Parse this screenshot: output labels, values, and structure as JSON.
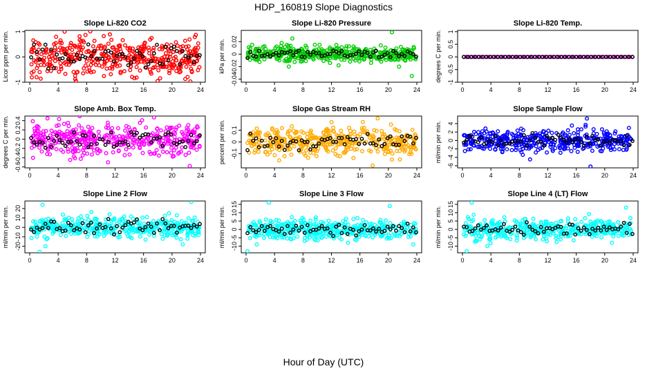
{
  "title": "HDP_160819  Slope Diagnostics",
  "xlabel": "Hour of Day (UTC)",
  "chart_data": [
    {
      "type": "scatter",
      "title": "Slope Li-820 CO2",
      "ylabel": "Licor ppm per min.",
      "color": "#ff0000",
      "xlim": [
        0,
        24
      ],
      "xticks": [
        0,
        4,
        8,
        12,
        16,
        20,
        24
      ],
      "ylim": [
        -1,
        1.05
      ],
      "yticks": [
        -1,
        0,
        1
      ],
      "spread": 0.38,
      "outliers": [
        [
          4.9,
          1.0
        ],
        [
          5.8,
          0.55
        ],
        [
          1.4,
          -0.6
        ],
        [
          6.5,
          -0.95
        ],
        [
          17,
          -0.6
        ],
        [
          22,
          0.4
        ]
      ]
    },
    {
      "type": "scatter",
      "title": "Slope Li-820 Pressure",
      "ylabel": "kPa per min.",
      "color": "#00cc00",
      "xlim": [
        0,
        24
      ],
      "xticks": [
        0,
        4,
        8,
        12,
        16,
        20,
        24
      ],
      "ylim": [
        -0.045,
        0.038
      ],
      "yticks": [
        -0.04,
        -0.02,
        0.0,
        0.02
      ],
      "spread": 0.006,
      "outliers": [
        [
          5,
          0.018
        ],
        [
          6,
          -0.02
        ],
        [
          6.5,
          0.025
        ],
        [
          20.5,
          0.035
        ],
        [
          21.5,
          -0.02
        ],
        [
          23.3,
          -0.035
        ],
        [
          13,
          -0.018
        ]
      ]
    },
    {
      "type": "scatter",
      "title": "Slope Li-820 Temp.",
      "ylabel": "degrees C per min.",
      "color": "#cc00cc",
      "xlim": [
        0,
        24
      ],
      "xticks": [
        0,
        4,
        8,
        12,
        16,
        20,
        24
      ],
      "ylim": [
        -1,
        1.05
      ],
      "yticks": [
        -1,
        -0.5,
        0,
        0.5,
        1
      ],
      "spread": 0.0,
      "outliers": []
    },
    {
      "type": "scatter",
      "title": "Slope Amb. Box Temp.",
      "ylabel": "degrees C per min.",
      "color": "#ff00ff",
      "xlim": [
        0,
        24
      ],
      "xticks": [
        0,
        4,
        8,
        12,
        16,
        20,
        24
      ],
      "ylim": [
        -0.62,
        0.5
      ],
      "yticks": [
        -0.6,
        -0.4,
        -0.2,
        0.0,
        0.2,
        0.4
      ],
      "spread": 0.17,
      "outliers": [
        [
          2.5,
          0.45
        ],
        [
          22.5,
          -0.58
        ],
        [
          11,
          -0.5
        ]
      ]
    },
    {
      "type": "scatter",
      "title": "Slope Gas Stream RH",
      "ylabel": "percent per min.",
      "color": "#ffaa00",
      "xlim": [
        0,
        24
      ],
      "xticks": [
        0,
        4,
        8,
        12,
        16,
        20,
        24
      ],
      "ylim": [
        -0.22,
        0.22
      ],
      "yticks": [
        -0.1,
        0.0,
        0.1
      ],
      "spread": 0.06,
      "outliers": [
        [
          18.5,
          0.2
        ],
        [
          20.5,
          -0.15
        ],
        [
          17.8,
          -0.2
        ]
      ]
    },
    {
      "type": "scatter",
      "title": "Slope Sample Flow",
      "ylabel": "ml/min per min.",
      "color": "#0000ff",
      "xlim": [
        0,
        24
      ],
      "xticks": [
        0,
        4,
        8,
        12,
        16,
        20,
        24
      ],
      "ylim": [
        -6.5,
        5.8
      ],
      "yticks": [
        -6,
        -4,
        -2,
        0,
        2,
        4
      ],
      "spread": 1.3,
      "outliers": [
        [
          17.5,
          5.2
        ],
        [
          18,
          -6.2
        ],
        [
          9.5,
          -4.5
        ]
      ]
    },
    {
      "type": "scatter",
      "title": "Slope Line 2 Flow",
      "ylabel": "ml/min per min.",
      "color": "#00ffff",
      "xlim": [
        0,
        24
      ],
      "xticks": [
        0,
        4,
        8,
        12,
        16,
        20,
        24
      ],
      "ylim": [
        -27,
        28
      ],
      "yticks": [
        -20,
        -10,
        0,
        10,
        20
      ],
      "spread": 5.5,
      "outliers": [
        [
          1.8,
          24
        ],
        [
          1.4,
          -26
        ],
        [
          22.7,
          27
        ],
        [
          2.2,
          -20
        ],
        [
          21.5,
          -18
        ]
      ]
    },
    {
      "type": "scatter",
      "title": "Slope Line 3 Flow",
      "ylabel": "ml/min per min.",
      "color": "#00ffff",
      "xlim": [
        0,
        24
      ],
      "xticks": [
        0,
        4,
        8,
        12,
        16,
        20,
        24
      ],
      "ylim": [
        -14,
        17
      ],
      "yticks": [
        -10,
        -5,
        0,
        5,
        10,
        15
      ],
      "spread": 3.0,
      "outliers": [
        [
          3.2,
          16
        ],
        [
          0.2,
          -13
        ],
        [
          20.2,
          14
        ],
        [
          1.5,
          -9
        ],
        [
          23.5,
          -9
        ]
      ]
    },
    {
      "type": "scatter",
      "title": "Slope Line 4 (LT) Flow",
      "ylabel": "ml/min per min.",
      "color": "#00ffff",
      "xlim": [
        0,
        24
      ],
      "xticks": [
        0,
        4,
        8,
        12,
        16,
        20,
        24
      ],
      "ylim": [
        -14,
        17
      ],
      "yticks": [
        -10,
        -5,
        0,
        5,
        10,
        15
      ],
      "spread": 3.0,
      "outliers": [
        [
          1.3,
          16
        ],
        [
          0.6,
          -13
        ],
        [
          23,
          13
        ],
        [
          3.5,
          -10
        ],
        [
          21,
          -8
        ]
      ]
    }
  ]
}
